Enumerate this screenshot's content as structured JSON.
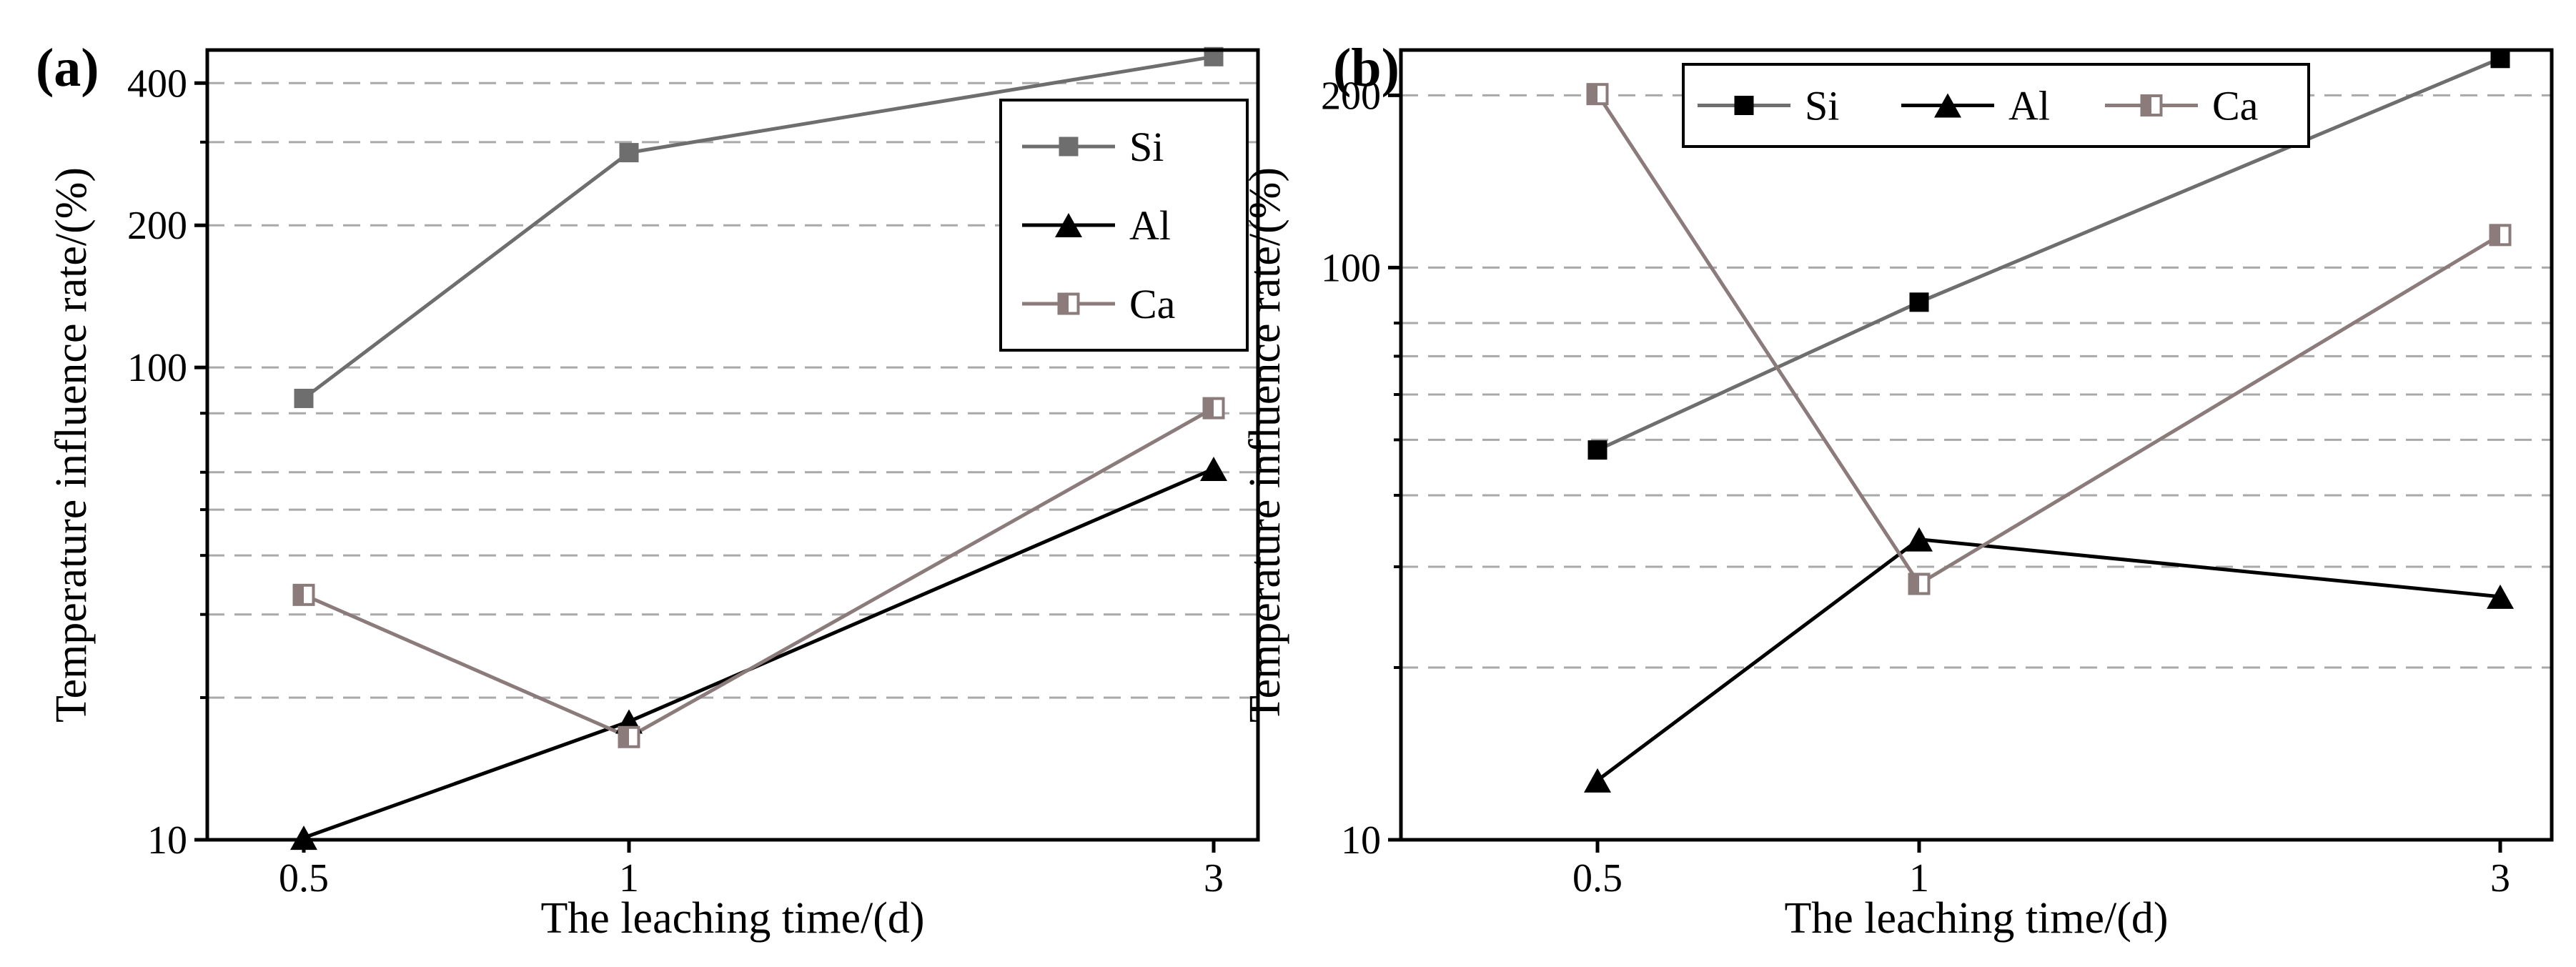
{
  "chart_data": [
    {
      "type": "line",
      "panel_label": "(a)",
      "xlabel": "The leaching time/(d)",
      "ylabel": "Temperature influence rate/(%)",
      "yscale": "log",
      "ylim": [
        10,
        470
      ],
      "categories": [
        "0.5",
        "1",
        "3"
      ],
      "y_ticks": [
        {
          "value": 10,
          "label": "10"
        },
        {
          "value": 100,
          "label": "100"
        },
        {
          "value": 200,
          "label": "200"
        },
        {
          "value": 400,
          "label": "400"
        }
      ],
      "gridlines": [
        20,
        30,
        40,
        50,
        60,
        80,
        100,
        200,
        300,
        400
      ],
      "legend_position": "top-right",
      "legend_layout": "vertical",
      "series": [
        {
          "name": "Si",
          "values": [
            86,
            285,
            455
          ],
          "marker": "square-filled",
          "color": "#6e6e6e"
        },
        {
          "name": "Al",
          "values": [
            10.1,
            17.8,
            61
          ],
          "marker": "triangle-filled",
          "color": "#000000"
        },
        {
          "name": "Ca",
          "values": [
            33,
            16.5,
            82
          ],
          "marker": "square-half",
          "color": "#8b7b7b"
        }
      ]
    },
    {
      "type": "line",
      "panel_label": "(b)",
      "xlabel": "The leaching time/(d)",
      "ylabel": "Temperature influence rate/(%)",
      "yscale": "log",
      "ylim": [
        10,
        240
      ],
      "categories": [
        "0.5",
        "1",
        "3"
      ],
      "y_ticks": [
        {
          "value": 10,
          "label": "10"
        },
        {
          "value": 100,
          "label": "100"
        },
        {
          "value": 200,
          "label": "200"
        }
      ],
      "gridlines": [
        20,
        30,
        40,
        50,
        60,
        70,
        80,
        100,
        200
      ],
      "legend_position": "top",
      "legend_layout": "horizontal",
      "series": [
        {
          "name": "Si",
          "values": [
            48,
            87,
            232
          ],
          "marker": "square-filled",
          "color": "#6e6e6e",
          "marker_color": "#000000"
        },
        {
          "name": "Al",
          "values": [
            12.7,
            33.5,
            26.6
          ],
          "marker": "triangle-filled",
          "color": "#000000"
        },
        {
          "name": "Ca",
          "values": [
            201,
            28,
            114
          ],
          "marker": "square-half",
          "color": "#8b7b7b"
        }
      ]
    }
  ]
}
